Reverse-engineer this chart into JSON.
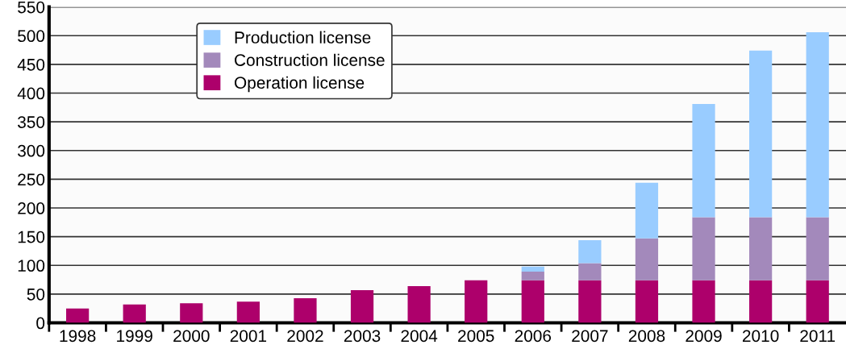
{
  "chart_data": {
    "type": "bar",
    "stacked": true,
    "categories": [
      "1998",
      "1999",
      "2000",
      "2001",
      "2002",
      "2003",
      "2004",
      "2005",
      "2006",
      "2007",
      "2008",
      "2009",
      "2010",
      "2011"
    ],
    "series": [
      {
        "name": "Operation license",
        "color": "#ad006b",
        "values": [
          25,
          32,
          34,
          37,
          43,
          57,
          64,
          74,
          74,
          74,
          74,
          74,
          74,
          74
        ]
      },
      {
        "name": "Construction license",
        "color": "#a389bb",
        "values": [
          null,
          null,
          null,
          null,
          null,
          null,
          null,
          null,
          15,
          30,
          73,
          110,
          110,
          110
        ]
      },
      {
        "name": "Production license",
        "color": "#99ccff",
        "values": [
          null,
          null,
          null,
          null,
          null,
          null,
          null,
          null,
          9,
          40,
          97,
          197,
          290,
          322
        ]
      }
    ],
    "ylim": [
      0,
      550
    ],
    "yticks": [
      0,
      50,
      100,
      150,
      200,
      250,
      300,
      350,
      400,
      450,
      500,
      550
    ],
    "grid": "y",
    "legend": "top left"
  }
}
